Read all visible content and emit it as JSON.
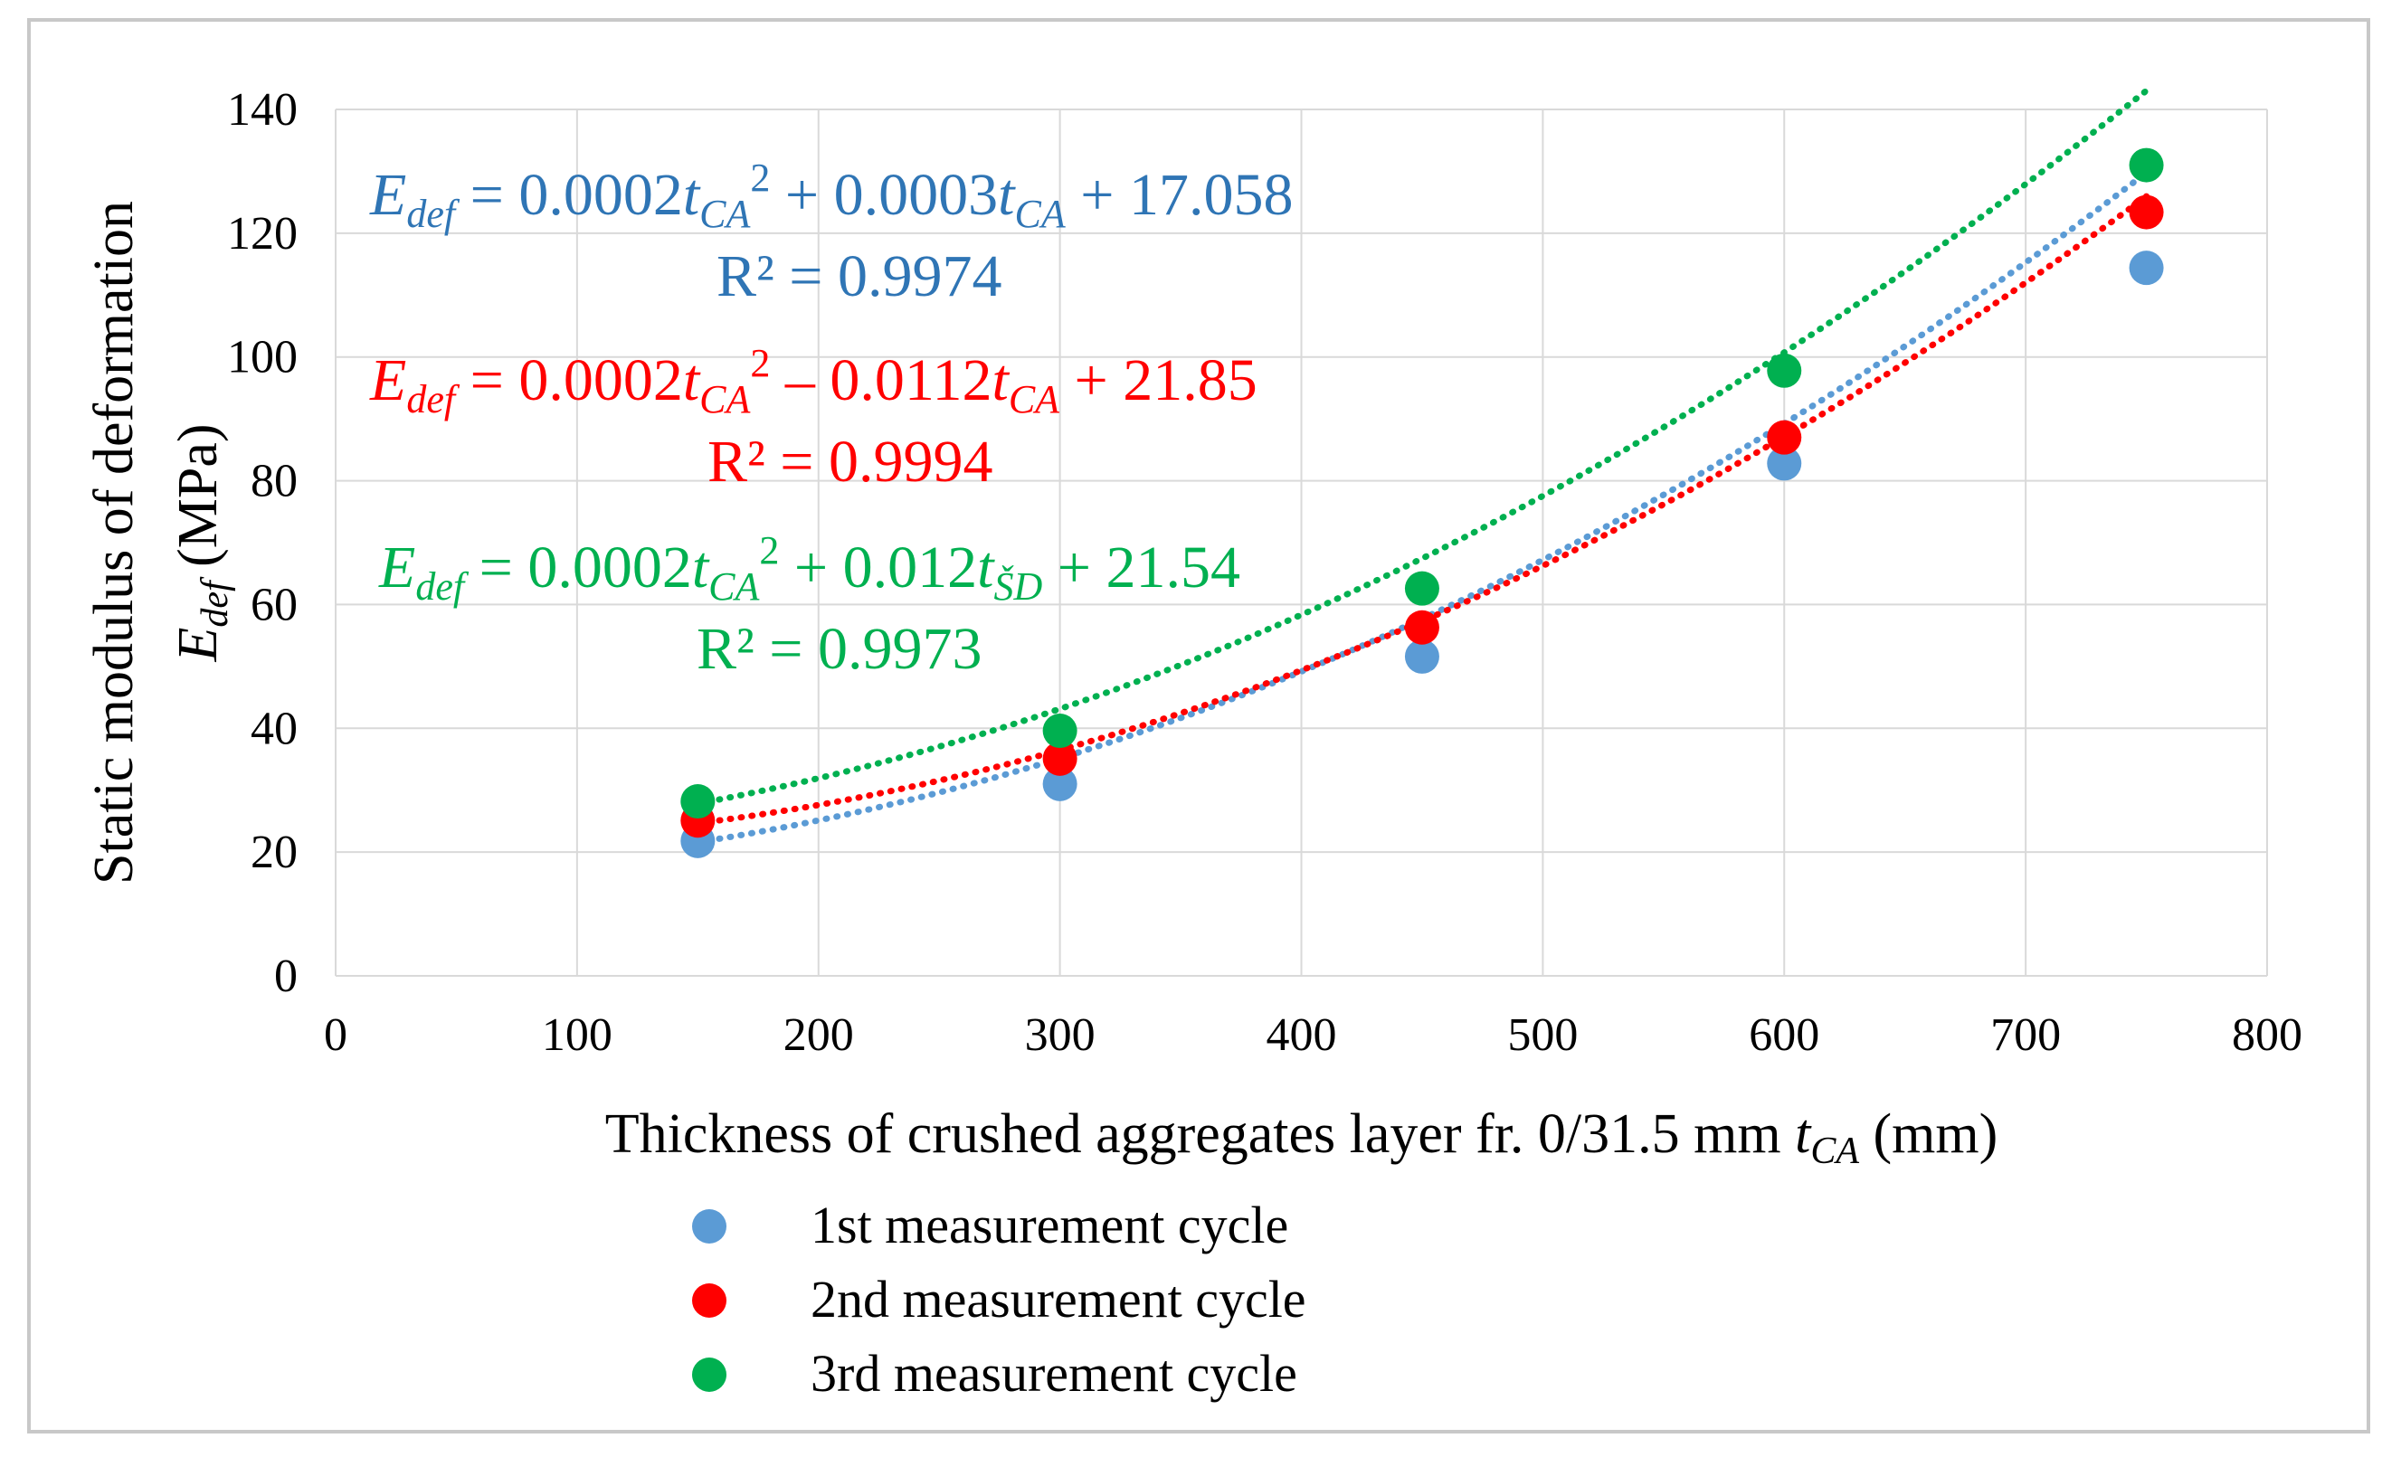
{
  "chart_data": {
    "type": "scatter",
    "xlabel_main": "Thickness of crushed aggregates layer fr. 0/31.5 mm ",
    "xlabel_symbol": "t",
    "xlabel_subscript": "CA",
    "xlabel_unit": " (mm)",
    "ylabel_main": "Static modulus of deformation",
    "ylabel_symbol": "E",
    "ylabel_subscript": "def",
    "ylabel_unit": " (MPa)",
    "xlim": [
      0,
      800
    ],
    "ylim": [
      0,
      140
    ],
    "xticks": [
      "0",
      "100",
      "200",
      "300",
      "400",
      "500",
      "600",
      "700",
      "800"
    ],
    "yticks": [
      "0",
      "20",
      "40",
      "60",
      "80",
      "100",
      "120",
      "140"
    ],
    "grid": true,
    "legend_position": "bottom",
    "series": [
      {
        "name": "1st measurement cycle",
        "color": "#5b9bd5",
        "x": [
          150,
          300,
          450,
          600,
          750
        ],
        "y": [
          21.8,
          31.0,
          51.6,
          82.8,
          114.4
        ],
        "trend": {
          "a": 0.0002,
          "b": 0.0003,
          "c": 17.058
        },
        "equation": {
          "prefix": "E",
          "prefix_sub": "def",
          "coef1": " = 0.0002",
          "var1": "t",
          "var1_sub": "CA",
          "exp": "2",
          "op2": " + 0.0003",
          "var2": "t",
          "var2_sub": "CA",
          "const": " + 17.058"
        },
        "r2": "R² = 0.9974",
        "label_color": "#2f75b5"
      },
      {
        "name": "2nd measurement cycle",
        "color": "#ff0000",
        "x": [
          150,
          300,
          450,
          600,
          750
        ],
        "y": [
          25.1,
          35.1,
          56.3,
          87.0,
          123.4
        ],
        "trend": {
          "a": 0.0002,
          "b": -0.0112,
          "c": 21.85
        },
        "equation": {
          "prefix": "E",
          "prefix_sub": "def",
          "coef1": " = 0.0002",
          "var1": "t",
          "var1_sub": "CA",
          "exp": "2",
          "op2": " – 0.0112",
          "var2": "t",
          "var2_sub": "CA",
          "const": " + 21.85"
        },
        "r2": "R² = 0.9994",
        "label_color": "#ff0000"
      },
      {
        "name": "3rd measurement cycle",
        "color": "#00b050",
        "x": [
          150,
          300,
          450,
          600,
          750
        ],
        "y": [
          28.2,
          39.6,
          62.6,
          97.8,
          131.0
        ],
        "trend": {
          "a": 0.0002,
          "b": 0.012,
          "c": 21.54
        },
        "equation": {
          "prefix": "E",
          "prefix_sub": "def",
          "coef1": " = 0.0002",
          "var1": "t",
          "var1_sub": "CA",
          "exp": "2",
          "op2": " + 0.012",
          "var2": "t",
          "var2_sub": "ŠD",
          "const": " + 21.54"
        },
        "r2": "R² = 0.9973",
        "label_color": "#00b050"
      }
    ]
  }
}
